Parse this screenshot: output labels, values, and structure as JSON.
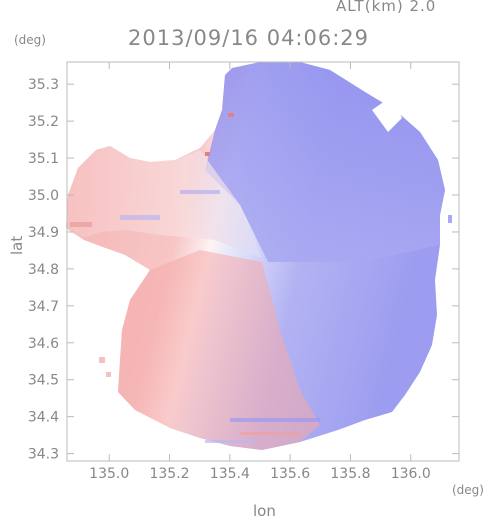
{
  "chart_data": {
    "type": "heatmap",
    "title": "2013/09/16 04:06:29",
    "subtitle": "ALT(km) 2.0",
    "xlabel": "lon",
    "ylabel": "lat",
    "xunit": "(deg)",
    "yunit": "(deg)",
    "xlim": [
      134.86,
      136.16
    ],
    "ylim": [
      34.28,
      35.36
    ],
    "xticks": [
      135.0,
      135.2,
      135.4,
      135.6,
      135.8,
      136.0
    ],
    "xtick_labels": [
      "135.0",
      "135.2",
      "135.4",
      "135.6",
      "135.8",
      "136.0"
    ],
    "yticks": [
      34.3,
      34.4,
      34.5,
      34.6,
      34.7,
      34.8,
      34.9,
      35.0,
      35.1,
      35.2,
      35.3
    ],
    "ytick_labels": [
      "34.3",
      "34.4",
      "34.5",
      "34.6",
      "34.7",
      "34.8",
      "34.9",
      "35.0",
      "35.1",
      "35.2",
      "35.3"
    ],
    "radar_center": [
      135.52,
      34.82
    ],
    "colors": {
      "toward": "#f2a3a3",
      "away": "#8f8ff0",
      "neutral": "#ffffff",
      "frame": "#bbbbbb",
      "text": "#888888"
    }
  }
}
